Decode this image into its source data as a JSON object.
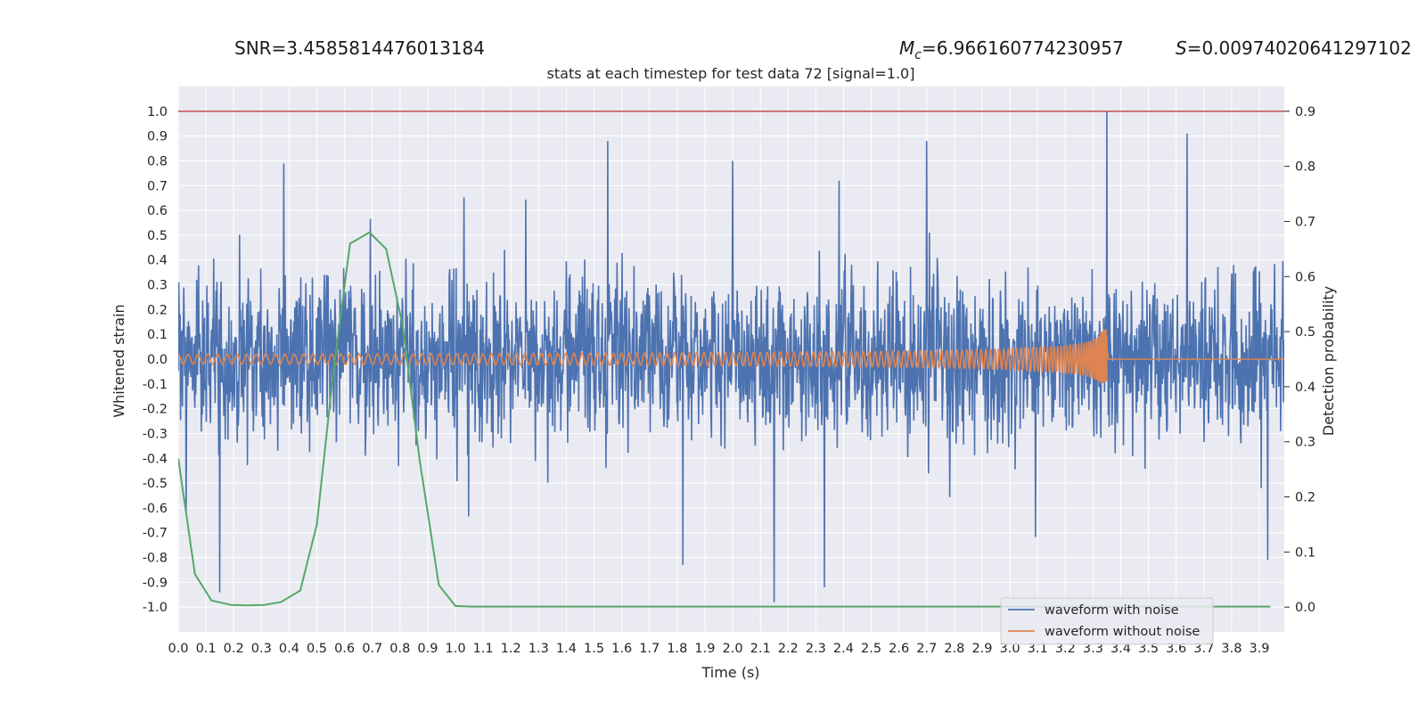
{
  "header": {
    "snr_text": "SNR=3.4585814476013184",
    "mc_symbol": "M",
    "mc_sub": "c",
    "mc_value": "=6.966160774230957",
    "s_symbol": "S",
    "s_value": "=0.00974020641297102"
  },
  "chart_data": {
    "type": "line",
    "title": "stats at each timestep for test data 72 [signal=1.0]",
    "xlabel": "Time (s)",
    "ylabel": "Whitened strain",
    "y2label": "Detection probability",
    "xlim": [
      0.0,
      3.99
    ],
    "ylim": [
      -1.1,
      1.1
    ],
    "y2lim": [
      -0.045,
      0.945
    ],
    "x_ticks": [
      "0.0",
      "0.1",
      "0.2",
      "0.3",
      "0.4",
      "0.5",
      "0.6",
      "0.7",
      "0.8",
      "0.9",
      "1.0",
      "1.1",
      "1.2",
      "1.3",
      "1.4",
      "1.5",
      "1.6",
      "1.7",
      "1.8",
      "1.9",
      "2.0",
      "2.1",
      "2.2",
      "2.3",
      "2.4",
      "2.5",
      "2.6",
      "2.7",
      "2.8",
      "2.9",
      "3.0",
      "3.1",
      "3.2",
      "3.3",
      "3.4",
      "3.5",
      "3.6",
      "3.7",
      "3.8",
      "3.9"
    ],
    "y_ticks": [
      "1.0",
      "0.9",
      "0.8",
      "0.7",
      "0.6",
      "0.5",
      "0.4",
      "0.3",
      "0.2",
      "0.1",
      "0.0",
      "-0.1",
      "-0.2",
      "-0.3",
      "-0.4",
      "-0.5",
      "-0.6",
      "-0.7",
      "-0.8",
      "-0.9",
      "-1.0"
    ],
    "y2_ticks": [
      "0.9",
      "0.8",
      "0.7",
      "0.6",
      "0.5",
      "0.4",
      "0.3",
      "0.2",
      "0.1",
      "0.0"
    ],
    "grid": true,
    "legend_position": "lower-right",
    "threshold_line": {
      "y": 1.0,
      "color": "#c44e52"
    },
    "series": [
      {
        "name": "waveform with noise",
        "color": "#4c72b0",
        "axis": "left",
        "peaks": [
          {
            "x": 1.55,
            "y": 0.88
          },
          {
            "x": 2.7,
            "y": 0.88
          },
          {
            "x": 3.35,
            "y": 1.0
          },
          {
            "x": 3.64,
            "y": 0.91
          },
          {
            "x": 2.0,
            "y": 0.8
          },
          {
            "x": 0.38,
            "y": 0.79
          },
          {
            "x": 2.15,
            "y": -0.98
          },
          {
            "x": 2.33,
            "y": -0.92
          },
          {
            "x": 0.15,
            "y": -0.94
          },
          {
            "x": 1.82,
            "y": -0.83
          },
          {
            "x": 3.93,
            "y": -0.81
          }
        ]
      },
      {
        "name": "waveform without noise",
        "color": "#dd8452",
        "axis": "left",
        "start_amplitude": 0.02,
        "peak_x": 3.35,
        "peak_y": 0.12,
        "end_x": 3.355
      },
      {
        "name": "",
        "color": "#55a868",
        "axis": "right",
        "x": [
          0.0,
          0.06,
          0.12,
          0.19,
          0.25,
          0.31,
          0.37,
          0.44,
          0.5,
          0.56,
          0.62,
          0.69,
          0.75,
          0.81,
          0.87,
          0.94,
          1.0,
          1.06,
          1.12,
          1.5,
          2.0,
          2.5,
          3.0,
          3.5,
          3.94
        ],
        "y": [
          0.27,
          0.06,
          0.012,
          0.004,
          0.003,
          0.004,
          0.009,
          0.03,
          0.15,
          0.43,
          0.66,
          0.68,
          0.65,
          0.51,
          0.27,
          0.04,
          0.002,
          0.001,
          0.001,
          0.001,
          0.001,
          0.001,
          0.001,
          0.001,
          0.001
        ]
      }
    ]
  }
}
